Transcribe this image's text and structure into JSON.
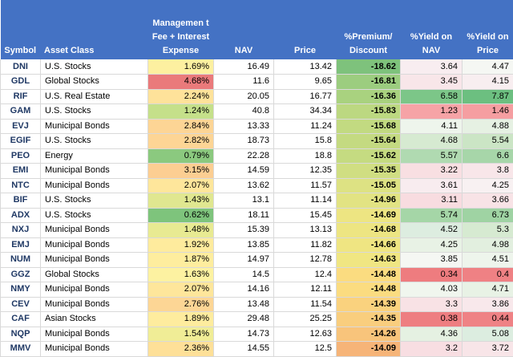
{
  "headers": {
    "symbol": "Symbol",
    "asset_class": "Asset Class",
    "fee": "Managemen t Fee + Interest Expense",
    "nav": "NAV",
    "price": "Price",
    "premium": "%Premium/ Discount",
    "yield_nav": "%Yield on NAV",
    "yield_price": "%Yield on Price"
  },
  "rows": [
    {
      "symbol": "DNI",
      "asset_class": "U.S. Stocks",
      "fee": "1.69%",
      "nav": "16.49",
      "price": "13.42",
      "premium": "-18.62",
      "yield_nav": "3.64",
      "yield_price": "4.47",
      "fee_color": "#fdf0a0",
      "premium_color": "#7ec27c",
      "yield_nav_color": "#f8edf0",
      "yield_price_color": "#f5f7f3"
    },
    {
      "symbol": "GDL",
      "asset_class": "Global Stocks",
      "fee": "4.68%",
      "nav": "11.6",
      "price": "9.65",
      "premium": "-16.81",
      "yield_nav": "3.45",
      "yield_price": "4.15",
      "fee_color": "#ea7a7b",
      "premium_color": "#9ccd7f",
      "yield_nav_color": "#f8e6e9",
      "yield_price_color": "#f8eef0"
    },
    {
      "symbol": "RIF",
      "asset_class": "U.S. Real Estate",
      "fee": "2.24%",
      "nav": "20.05",
      "price": "16.77",
      "premium": "-16.36",
      "yield_nav": "6.58",
      "yield_price": "7.87",
      "fee_color": "#fee29a",
      "premium_color": "#a9d27f",
      "yield_nav_color": "#7cc688",
      "yield_price_color": "#6cbf80"
    },
    {
      "symbol": "GAM",
      "asset_class": "U.S. Stocks",
      "fee": "1.24%",
      "nav": "40.8",
      "price": "34.34",
      "premium": "-15.83",
      "yield_nav": "1.23",
      "yield_price": "1.46",
      "fee_color": "#c5e08a",
      "premium_color": "#bcd881",
      "yield_nav_color": "#f6a3a6",
      "yield_price_color": "#f59ea1"
    },
    {
      "symbol": "EVJ",
      "asset_class": "Municipal Bonds",
      "fee": "2.84%",
      "nav": "13.33",
      "price": "11.24",
      "premium": "-15.68",
      "yield_nav": "4.11",
      "yield_price": "4.88",
      "fee_color": "#fdd595",
      "premium_color": "#c2da81",
      "yield_nav_color": "#eef5ec",
      "yield_price_color": "#e6f1e3"
    },
    {
      "symbol": "EGIF",
      "asset_class": "U.S. Stocks",
      "fee": "2.82%",
      "nav": "18.73",
      "price": "15.8",
      "premium": "-15.64",
      "yield_nav": "4.68",
      "yield_price": "5.54",
      "fee_color": "#fdd595",
      "premium_color": "#c4da81",
      "yield_nav_color": "#d6ead1",
      "yield_price_color": "#cbe5c5"
    },
    {
      "symbol": "PEO",
      "asset_class": "Energy",
      "fee": "0.79%",
      "nav": "22.28",
      "price": "18.8",
      "premium": "-15.62",
      "yield_nav": "5.57",
      "yield_price": "6.6",
      "fee_color": "#8bc97f",
      "premium_color": "#c5db81",
      "yield_nav_color": "#b0dab1",
      "yield_price_color": "#a7d6a9"
    },
    {
      "symbol": "EMI",
      "asset_class": "Municipal Bonds",
      "fee": "3.15%",
      "nav": "14.59",
      "price": "12.35",
      "premium": "-15.35",
      "yield_nav": "3.22",
      "yield_price": "3.8",
      "fee_color": "#fcce92",
      "premium_color": "#d0de82",
      "yield_nav_color": "#f8dfe2",
      "yield_price_color": "#f8e6e9"
    },
    {
      "symbol": "NTC",
      "asset_class": "Municipal Bonds",
      "fee": "2.07%",
      "nav": "13.62",
      "price": "11.57",
      "premium": "-15.05",
      "yield_nav": "3.61",
      "yield_price": "4.25",
      "fee_color": "#fee69b",
      "premium_color": "#dde283",
      "yield_nav_color": "#f8ecef",
      "yield_price_color": "#f8f1f2"
    },
    {
      "symbol": "BIF",
      "asset_class": "U.S. Stocks",
      "fee": "1.43%",
      "nav": "13.1",
      "price": "11.14",
      "premium": "-14.96",
      "yield_nav": "3.11",
      "yield_price": "3.66",
      "fee_color": "#e0e790",
      "premium_color": "#e2e383",
      "yield_nav_color": "#f8dce0",
      "yield_price_color": "#f8e3e6"
    },
    {
      "symbol": "ADX",
      "asset_class": "U.S. Stocks",
      "fee": "0.62%",
      "nav": "18.11",
      "price": "15.45",
      "premium": "-14.69",
      "yield_nav": "5.74",
      "yield_price": "6.73",
      "fee_color": "#7ec47c",
      "premium_color": "#ede582",
      "yield_nav_color": "#a5d6a7",
      "yield_price_color": "#9fd3a3"
    },
    {
      "symbol": "NXJ",
      "asset_class": "Municipal Bonds",
      "fee": "1.48%",
      "nav": "15.39",
      "price": "13.13",
      "premium": "-14.68",
      "yield_nav": "4.52",
      "yield_price": "5.3",
      "fee_color": "#e8ea92",
      "premium_color": "#ede582",
      "yield_nav_color": "#ddede0",
      "yield_price_color": "#d6ead1"
    },
    {
      "symbol": "EMJ",
      "asset_class": "Municipal Bonds",
      "fee": "1.92%",
      "nav": "13.85",
      "price": "11.82",
      "premium": "-14.66",
      "yield_nav": "4.25",
      "yield_price": "4.98",
      "fee_color": "#feeb9d",
      "premium_color": "#efe582",
      "yield_nav_color": "#e8f2e5",
      "yield_price_color": "#e2efdf"
    },
    {
      "symbol": "NUM",
      "asset_class": "Municipal Bonds",
      "fee": "1.87%",
      "nav": "14.97",
      "price": "12.78",
      "premium": "-14.63",
      "yield_nav": "3.85",
      "yield_price": "4.51",
      "fee_color": "#feed9e",
      "premium_color": "#f0e682",
      "yield_nav_color": "#f5f7f3",
      "yield_price_color": "#eef5ec"
    },
    {
      "symbol": "GGZ",
      "asset_class": "Global Stocks",
      "fee": "1.63%",
      "nav": "14.5",
      "price": "12.4",
      "premium": "-14.48",
      "yield_nav": "0.34",
      "yield_price": "0.4",
      "fee_color": "#fdf2a1",
      "premium_color": "#fbdc80",
      "yield_nav_color": "#ee7c7f",
      "yield_price_color": "#ef8184"
    },
    {
      "symbol": "NMY",
      "asset_class": "Municipal Bonds",
      "fee": "2.07%",
      "nav": "14.16",
      "price": "12.11",
      "premium": "-14.48",
      "yield_nav": "4.03",
      "yield_price": "4.71",
      "fee_color": "#fee69b",
      "premium_color": "#fbdc80",
      "yield_nav_color": "#f0f6ee",
      "yield_price_color": "#e8f2e5"
    },
    {
      "symbol": "CEV",
      "asset_class": "Municipal Bonds",
      "fee": "2.76%",
      "nav": "13.48",
      "price": "11.54",
      "premium": "-14.39",
      "yield_nav": "3.3",
      "yield_price": "3.86",
      "fee_color": "#fdd695",
      "premium_color": "#fad27e",
      "yield_nav_color": "#f8e2e5",
      "yield_price_color": "#f8e8eb"
    },
    {
      "symbol": "CAF",
      "asset_class": "Asian Stocks",
      "fee": "1.89%",
      "nav": "29.48",
      "price": "25.25",
      "premium": "-14.35",
      "yield_nav": "0.38",
      "yield_price": "0.44",
      "fee_color": "#feec9e",
      "premium_color": "#f9ce7e",
      "yield_nav_color": "#ee7e81",
      "yield_price_color": "#ef8285"
    },
    {
      "symbol": "NQP",
      "asset_class": "Municipal Bonds",
      "fee": "1.54%",
      "nav": "14.73",
      "price": "12.63",
      "premium": "-14.26",
      "yield_nav": "4.36",
      "yield_price": "5.08",
      "fee_color": "#f0ed96",
      "premium_color": "#f8c47b",
      "yield_nav_color": "#e5f1e2",
      "yield_price_color": "#dcede0"
    },
    {
      "symbol": "MMV",
      "asset_class": "Municipal Bonds",
      "fee": "2.36%",
      "nav": "14.55",
      "price": "12.5",
      "premium": "-14.09",
      "yield_nav": "3.2",
      "yield_price": "3.72",
      "fee_color": "#fee098",
      "premium_color": "#f6b478",
      "yield_nav_color": "#f8dee2",
      "yield_price_color": "#f8e5e8"
    }
  ]
}
